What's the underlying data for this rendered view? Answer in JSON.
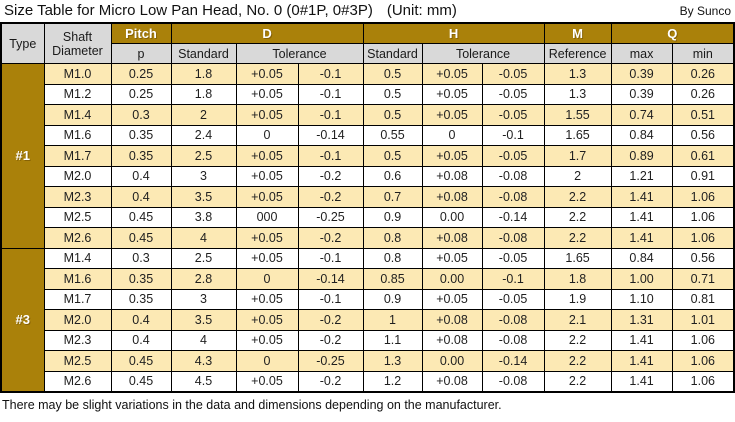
{
  "title": {
    "main": "Size Table for Micro Low Pan Head, No. 0 (0#1P, 0#3P)",
    "unit": "(Unit: mm)",
    "byline": "By Sunco"
  },
  "footer": "There may be slight variations in the data and dimensions depending on the manufacturer.",
  "colors": {
    "gold": "#AA810A",
    "header_gray": "#D9D9D9",
    "row_cream": "#FCE9B4",
    "row_white": "#FFFFFF",
    "border": "#000000"
  },
  "header": {
    "type": "Type",
    "shaft_line1": "Shaft",
    "shaft_line2": "Diameter",
    "pitch": "Pitch",
    "p": "p",
    "d": "D",
    "h": "H",
    "m": "M",
    "q": "Q",
    "d_standard": "Standard",
    "d_tolerance": "Tolerance",
    "h_standard": "Standard",
    "h_tolerance": "Tolerance",
    "m_reference": "Reference",
    "q_max": "max",
    "q_min": "min"
  },
  "sections": [
    {
      "type_label": "#1",
      "rows": [
        [
          "M1.0",
          "0.25",
          "1.8",
          "+0.05",
          "-0.1",
          "0.5",
          "+0.05",
          "-0.05",
          "1.3",
          "0.39",
          "0.26"
        ],
        [
          "M1.2",
          "0.25",
          "1.8",
          "+0.05",
          "-0.1",
          "0.5",
          "+0.05",
          "-0.05",
          "1.3",
          "0.39",
          "0.26"
        ],
        [
          "M1.4",
          "0.3",
          "2",
          "+0.05",
          "-0.1",
          "0.5",
          "+0.05",
          "-0.05",
          "1.55",
          "0.74",
          "0.51"
        ],
        [
          "M1.6",
          "0.35",
          "2.4",
          "0",
          "-0.14",
          "0.55",
          "0",
          "-0.1",
          "1.65",
          "0.84",
          "0.56"
        ],
        [
          "M1.7",
          "0.35",
          "2.5",
          "+0.05",
          "-0.1",
          "0.5",
          "+0.05",
          "-0.05",
          "1.7",
          "0.89",
          "0.61"
        ],
        [
          "M2.0",
          "0.4",
          "3",
          "+0.05",
          "-0.2",
          "0.6",
          "+0.08",
          "-0.08",
          "2",
          "1.21",
          "0.91"
        ],
        [
          "M2.3",
          "0.4",
          "3.5",
          "+0.05",
          "-0.2",
          "0.7",
          "+0.08",
          "-0.08",
          "2.2",
          "1.41",
          "1.06"
        ],
        [
          "M2.5",
          "0.45",
          "3.8",
          "000",
          "-0.25",
          "0.9",
          "0.00",
          "-0.14",
          "2.2",
          "1.41",
          "1.06"
        ],
        [
          "M2.6",
          "0.45",
          "4",
          "+0.05",
          "-0.2",
          "0.8",
          "+0.08",
          "-0.08",
          "2.2",
          "1.41",
          "1.06"
        ]
      ]
    },
    {
      "type_label": "#3",
      "rows": [
        [
          "M1.4",
          "0.3",
          "2.5",
          "+0.05",
          "-0.1",
          "0.8",
          "+0.05",
          "-0.05",
          "1.65",
          "0.84",
          "0.56"
        ],
        [
          "M1.6",
          "0.35",
          "2.8",
          "0",
          "-0.14",
          "0.85",
          "0.00",
          "-0.1",
          "1.8",
          "1.00",
          "0.71"
        ],
        [
          "M1.7",
          "0.35",
          "3",
          "+0.05",
          "-0.1",
          "0.9",
          "+0.05",
          "-0.05",
          "1.9",
          "1.10",
          "0.81"
        ],
        [
          "M2.0",
          "0.4",
          "3.5",
          "+0.05",
          "-0.2",
          "1",
          "+0.08",
          "-0.08",
          "2.1",
          "1.31",
          "1.01"
        ],
        [
          "M2.3",
          "0.4",
          "4",
          "+0.05",
          "-0.2",
          "1.1",
          "+0.08",
          "-0.08",
          "2.2",
          "1.41",
          "1.06"
        ],
        [
          "M2.5",
          "0.45",
          "4.3",
          "0",
          "-0.25",
          "1.3",
          "0.00",
          "-0.14",
          "2.2",
          "1.41",
          "1.06"
        ],
        [
          "M2.6",
          "0.45",
          "4.5",
          "+0.05",
          "-0.2",
          "1.2",
          "+0.08",
          "-0.08",
          "2.2",
          "1.41",
          "1.06"
        ]
      ]
    }
  ],
  "column_keys": [
    "shaft-diameter",
    "pitch",
    "d-standard",
    "d-tol-plus",
    "d-tol-minus",
    "h-standard",
    "h-tol-plus",
    "h-tol-minus",
    "m-reference",
    "q-max",
    "q-min"
  ]
}
